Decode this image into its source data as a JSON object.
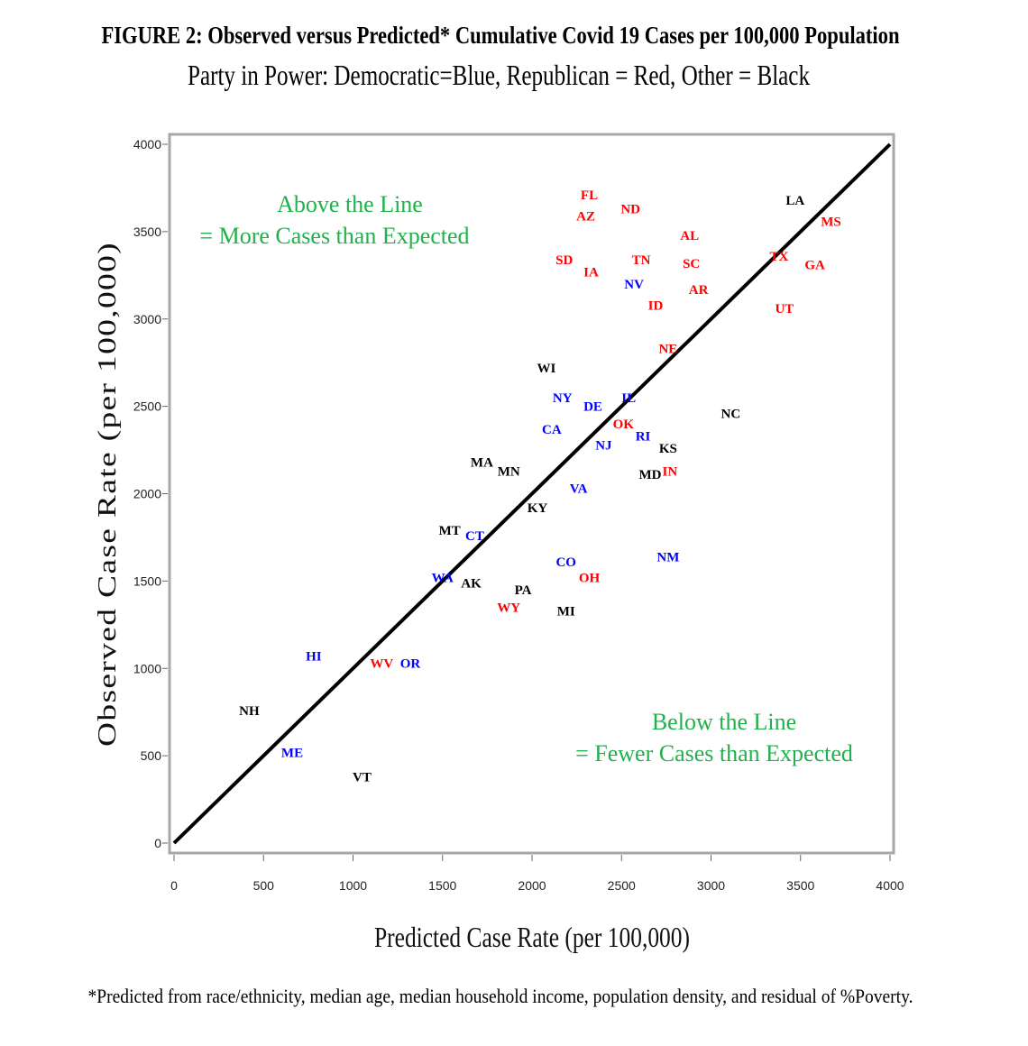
{
  "chart_data": {
    "type": "scatter",
    "title": "FIGURE 2: Observed versus Predicted* Cumulative Covid 19 Cases per 100,000 Population",
    "subtitle": "Party in Power: Democratic=Blue, Republican = Red, Other = Black",
    "xlabel": "Predicted Case Rate (per 100,000)",
    "ylabel": "Observed Case Rate (per 100,000)",
    "xlim": [
      0,
      4000
    ],
    "ylim": [
      0,
      4000
    ],
    "xticks": [
      "0",
      "500",
      "1000",
      "1500",
      "2000",
      "2500",
      "3000",
      "3500",
      "4000"
    ],
    "yticks": [
      "0",
      "500",
      "1000",
      "1500",
      "2000",
      "2500",
      "3000",
      "3500",
      "4000"
    ],
    "grid": false,
    "reference_line": {
      "x": [
        0,
        4000
      ],
      "y": [
        0,
        4000
      ],
      "color": "#000000"
    },
    "annotations": {
      "above": [
        "Above the Line",
        "= More Cases than Expected"
      ],
      "below": [
        "Below the Line",
        "= Fewer Cases than Expected"
      ],
      "color": "#22b04c"
    },
    "footnote": "*Predicted from race/ethnicity, median age, median household income, population density, and residual of %Poverty.",
    "party_colors": {
      "Democratic": "#0000ff",
      "Republican": "#ff0000",
      "Other": "#000000"
    },
    "points": [
      {
        "label": "FL",
        "x": 2320,
        "y": 3710,
        "party": "Republican"
      },
      {
        "label": "AZ",
        "x": 2300,
        "y": 3590,
        "party": "Republican"
      },
      {
        "label": "ND",
        "x": 2550,
        "y": 3630,
        "party": "Republican"
      },
      {
        "label": "AL",
        "x": 2880,
        "y": 3480,
        "party": "Republican"
      },
      {
        "label": "SD",
        "x": 2180,
        "y": 3340,
        "party": "Republican"
      },
      {
        "label": "IA",
        "x": 2330,
        "y": 3270,
        "party": "Republican"
      },
      {
        "label": "TN",
        "x": 2610,
        "y": 3340,
        "party": "Republican"
      },
      {
        "label": "SC",
        "x": 2890,
        "y": 3320,
        "party": "Republican"
      },
      {
        "label": "NV",
        "x": 2570,
        "y": 3200,
        "party": "Democratic"
      },
      {
        "label": "AR",
        "x": 2930,
        "y": 3170,
        "party": "Republican"
      },
      {
        "label": "ID",
        "x": 2690,
        "y": 3080,
        "party": "Republican"
      },
      {
        "label": "NE",
        "x": 2760,
        "y": 2830,
        "party": "Republican"
      },
      {
        "label": "LA",
        "x": 3470,
        "y": 3680,
        "party": "Other"
      },
      {
        "label": "MS",
        "x": 3670,
        "y": 3560,
        "party": "Republican"
      },
      {
        "label": "TX",
        "x": 3380,
        "y": 3360,
        "party": "Republican"
      },
      {
        "label": "GA",
        "x": 3580,
        "y": 3310,
        "party": "Republican"
      },
      {
        "label": "UT",
        "x": 3410,
        "y": 3060,
        "party": "Republican"
      },
      {
        "label": "WI",
        "x": 2080,
        "y": 2720,
        "party": "Other"
      },
      {
        "label": "NY",
        "x": 2170,
        "y": 2550,
        "party": "Democratic"
      },
      {
        "label": "DE",
        "x": 2340,
        "y": 2500,
        "party": "Democratic"
      },
      {
        "label": "IL",
        "x": 2540,
        "y": 2550,
        "party": "Democratic"
      },
      {
        "label": "OK",
        "x": 2510,
        "y": 2400,
        "party": "Republican"
      },
      {
        "label": "RI",
        "x": 2620,
        "y": 2330,
        "party": "Democratic"
      },
      {
        "label": "CA",
        "x": 2110,
        "y": 2370,
        "party": "Democratic"
      },
      {
        "label": "NJ",
        "x": 2400,
        "y": 2280,
        "party": "Democratic"
      },
      {
        "label": "KS",
        "x": 2760,
        "y": 2260,
        "party": "Other"
      },
      {
        "label": "NC",
        "x": 3110,
        "y": 2460,
        "party": "Other"
      },
      {
        "label": "MA",
        "x": 1720,
        "y": 2180,
        "party": "Other"
      },
      {
        "label": "MN",
        "x": 1870,
        "y": 2130,
        "party": "Other"
      },
      {
        "label": "MD",
        "x": 2660,
        "y": 2110,
        "party": "Other"
      },
      {
        "label": "IN",
        "x": 2770,
        "y": 2130,
        "party": "Republican"
      },
      {
        "label": "VA",
        "x": 2260,
        "y": 2030,
        "party": "Democratic"
      },
      {
        "label": "KY",
        "x": 2030,
        "y": 1920,
        "party": "Other"
      },
      {
        "label": "MT",
        "x": 1540,
        "y": 1790,
        "party": "Other"
      },
      {
        "label": "CT",
        "x": 1680,
        "y": 1760,
        "party": "Democratic"
      },
      {
        "label": "NM",
        "x": 2760,
        "y": 1640,
        "party": "Democratic"
      },
      {
        "label": "CO",
        "x": 2190,
        "y": 1610,
        "party": "Democratic"
      },
      {
        "label": "OH",
        "x": 2320,
        "y": 1520,
        "party": "Republican"
      },
      {
        "label": "WA",
        "x": 1500,
        "y": 1520,
        "party": "Democratic"
      },
      {
        "label": "AK",
        "x": 1660,
        "y": 1490,
        "party": "Other"
      },
      {
        "label": "PA",
        "x": 1950,
        "y": 1450,
        "party": "Other"
      },
      {
        "label": "WY",
        "x": 1870,
        "y": 1350,
        "party": "Republican"
      },
      {
        "label": "MI",
        "x": 2190,
        "y": 1330,
        "party": "Other"
      },
      {
        "label": "HI",
        "x": 780,
        "y": 1070,
        "party": "Democratic"
      },
      {
        "label": "WV",
        "x": 1160,
        "y": 1030,
        "party": "Republican"
      },
      {
        "label": "OR",
        "x": 1320,
        "y": 1030,
        "party": "Democratic"
      },
      {
        "label": "NH",
        "x": 420,
        "y": 760,
        "party": "Other"
      },
      {
        "label": "ME",
        "x": 660,
        "y": 520,
        "party": "Democratic"
      },
      {
        "label": "VT",
        "x": 1050,
        "y": 380,
        "party": "Other"
      }
    ]
  }
}
